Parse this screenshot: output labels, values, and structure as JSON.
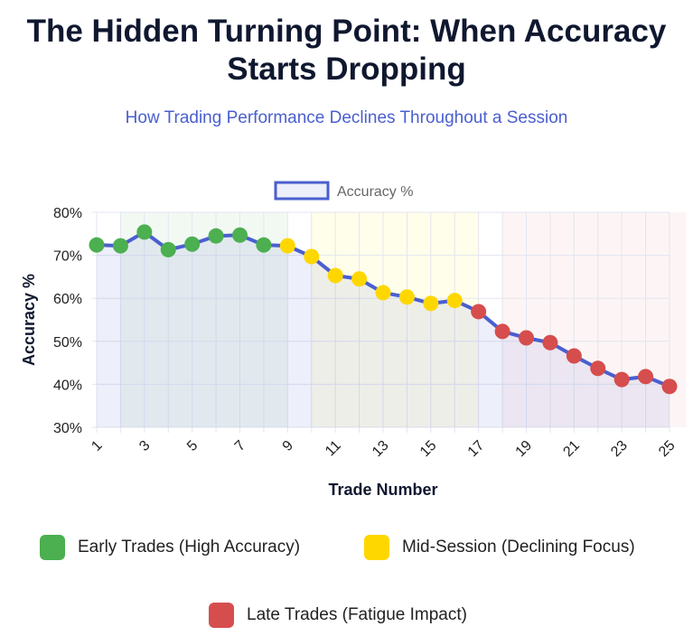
{
  "title": "The Hidden Turning Point: When Accuracy Starts Dropping",
  "subtitle": "How Trading Performance Declines Throughout a Session",
  "chart_data": {
    "type": "line",
    "title": "The Hidden Turning Point: When Accuracy Starts Dropping",
    "xlabel": "Trade Number",
    "ylabel": "Accuracy %",
    "ylim": [
      30,
      80
    ],
    "yticks": [
      "30%",
      "40%",
      "50%",
      "60%",
      "70%",
      "80%"
    ],
    "xticks": [
      "1",
      "3",
      "5",
      "7",
      "9",
      "11",
      "13",
      "15",
      "17",
      "19",
      "21",
      "23",
      "25"
    ],
    "grid": true,
    "legend_position": "top",
    "x": [
      1,
      2,
      3,
      4,
      5,
      6,
      7,
      8,
      9,
      10,
      11,
      12,
      13,
      14,
      15,
      16,
      17,
      18,
      19,
      20,
      21,
      22,
      23,
      24,
      25
    ],
    "series": [
      {
        "name": "Accuracy %",
        "color": "#4a5fcf",
        "values": [
          72.4,
          72.2,
          75.4,
          71.3,
          72.6,
          74.5,
          74.7,
          72.4,
          72.2,
          69.7,
          65.3,
          64.5,
          61.3,
          60.3,
          58.8,
          59.5,
          56.9,
          52.3,
          50.8,
          49.7,
          46.6,
          43.7,
          41.1,
          41.8,
          39.5
        ]
      }
    ],
    "point_phases": [
      "early",
      "early",
      "early",
      "early",
      "early",
      "early",
      "early",
      "early",
      "mid",
      "mid",
      "mid",
      "mid",
      "mid",
      "mid",
      "mid",
      "mid",
      "late",
      "late",
      "late",
      "late",
      "late",
      "late",
      "late",
      "late",
      "late"
    ],
    "phases": [
      {
        "key": "early",
        "label": "Early Trades (High Accuracy)",
        "color": "#4caf50",
        "band": [
          2,
          9
        ]
      },
      {
        "key": "mid",
        "label": "Mid-Session (Declining Focus)",
        "color": "#ffd700",
        "band": [
          10,
          17
        ]
      },
      {
        "key": "late",
        "label": "Late Trades (Fatigue Impact)",
        "color": "#d64d4d",
        "band": [
          18,
          25.7
        ]
      }
    ]
  }
}
